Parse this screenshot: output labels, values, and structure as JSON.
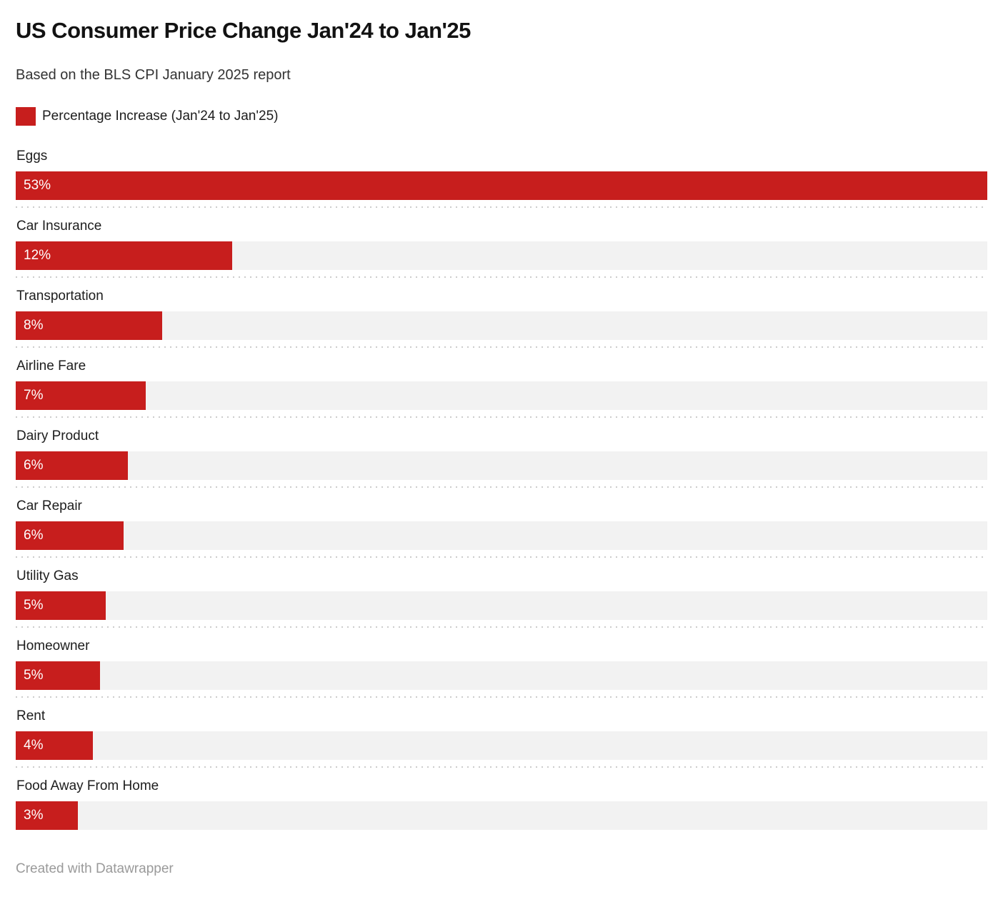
{
  "header": {
    "title": "US Consumer Price Change Jan'24 to Jan'25",
    "subtitle": "Based on the BLS CPI January 2025 report"
  },
  "legend": {
    "label": "Percentage Increase (Jan'24 to Jan'25)",
    "swatch_color": "#c71e1d"
  },
  "chart_data": {
    "type": "bar",
    "orientation": "horizontal",
    "title": "US Consumer Price Change Jan'24 to Jan'25",
    "subtitle": "Based on the BLS CPI January 2025 report",
    "legend_entries": [
      "Percentage Increase (Jan'24 to Jan'25)"
    ],
    "legend_position": "top-left",
    "categories": [
      "Eggs",
      "Car Insurance",
      "Transportation",
      "Airline Fare",
      "Dairy Product",
      "Car Repair",
      "Utility Gas",
      "Homeowner",
      "Rent",
      "Food Away From Home"
    ],
    "values": [
      53,
      11.8,
      8,
      7.1,
      6.1,
      5.9,
      4.9,
      4.6,
      4.2,
      3.4
    ],
    "value_labels": [
      "53%",
      "12%",
      "8%",
      "7%",
      "6%",
      "6%",
      "5%",
      "5%",
      "4%",
      "3%"
    ],
    "xlabel": "",
    "ylabel": "",
    "xlim": [
      0,
      53
    ],
    "grid": false,
    "bar_color": "#c71e1d",
    "track_color": "#f2f2f2"
  },
  "colors": {
    "accent": "#c71e1d",
    "track": "#f2f2f2",
    "separator": "#cccccc",
    "text": "#1d1d1d",
    "muted": "#9a9a9a"
  },
  "footer": {
    "credit": "Created with Datawrapper"
  }
}
